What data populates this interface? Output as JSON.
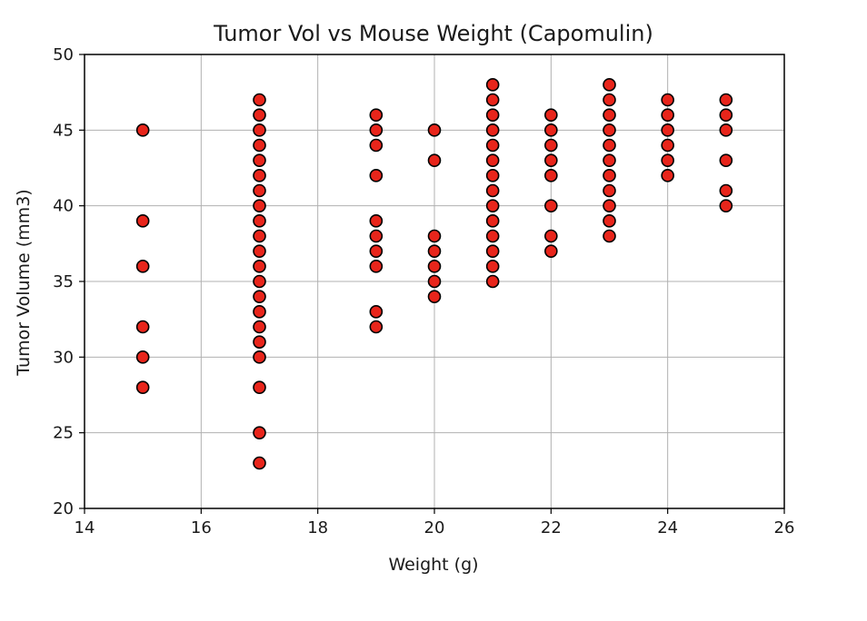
{
  "chart_data": {
    "type": "scatter",
    "title": "Tumor Vol vs Mouse Weight (Capomulin)",
    "xlabel": "Weight (g)",
    "ylabel": "Tumor Volume (mm3)",
    "xlim": [
      14,
      26
    ],
    "ylim": [
      20,
      50
    ],
    "xticks": [
      "14",
      "16",
      "18",
      "20",
      "22",
      "24",
      "26"
    ],
    "yticks": [
      "20",
      "25",
      "30",
      "35",
      "40",
      "45",
      "50"
    ],
    "grid": true,
    "marker_color": "#e8251b",
    "marker_edge_color": "#000000",
    "points": [
      [
        15,
        45
      ],
      [
        15,
        39
      ],
      [
        15,
        36
      ],
      [
        15,
        32
      ],
      [
        15,
        30
      ],
      [
        15,
        28
      ],
      [
        17,
        47
      ],
      [
        17,
        46
      ],
      [
        17,
        45
      ],
      [
        17,
        44
      ],
      [
        17,
        43
      ],
      [
        17,
        42
      ],
      [
        17,
        41
      ],
      [
        17,
        40
      ],
      [
        17,
        39
      ],
      [
        17,
        38
      ],
      [
        17,
        37
      ],
      [
        17,
        36
      ],
      [
        17,
        35
      ],
      [
        17,
        34
      ],
      [
        17,
        33
      ],
      [
        17,
        32
      ],
      [
        17,
        31
      ],
      [
        17,
        30
      ],
      [
        17,
        28
      ],
      [
        17,
        25
      ],
      [
        17,
        23
      ],
      [
        19,
        46
      ],
      [
        19,
        45
      ],
      [
        19,
        44
      ],
      [
        19,
        42
      ],
      [
        19,
        39
      ],
      [
        19,
        38
      ],
      [
        19,
        37
      ],
      [
        19,
        36
      ],
      [
        19,
        33
      ],
      [
        19,
        32
      ],
      [
        20,
        45
      ],
      [
        20,
        43
      ],
      [
        20,
        38
      ],
      [
        20,
        37
      ],
      [
        20,
        36
      ],
      [
        20,
        35
      ],
      [
        20,
        34
      ],
      [
        21,
        48
      ],
      [
        21,
        47
      ],
      [
        21,
        46
      ],
      [
        21,
        45
      ],
      [
        21,
        44
      ],
      [
        21,
        43
      ],
      [
        21,
        42
      ],
      [
        21,
        41
      ],
      [
        21,
        40
      ],
      [
        21,
        39
      ],
      [
        21,
        38
      ],
      [
        21,
        37
      ],
      [
        21,
        36
      ],
      [
        21,
        35
      ],
      [
        22,
        46
      ],
      [
        22,
        45
      ],
      [
        22,
        44
      ],
      [
        22,
        43
      ],
      [
        22,
        42
      ],
      [
        22,
        40
      ],
      [
        22,
        38
      ],
      [
        22,
        37
      ],
      [
        23,
        48
      ],
      [
        23,
        47
      ],
      [
        23,
        46
      ],
      [
        23,
        45
      ],
      [
        23,
        44
      ],
      [
        23,
        43
      ],
      [
        23,
        42
      ],
      [
        23,
        41
      ],
      [
        23,
        40
      ],
      [
        23,
        39
      ],
      [
        23,
        38
      ],
      [
        24,
        47
      ],
      [
        24,
        46
      ],
      [
        24,
        45
      ],
      [
        24,
        44
      ],
      [
        24,
        43
      ],
      [
        24,
        42
      ],
      [
        25,
        47
      ],
      [
        25,
        46
      ],
      [
        25,
        45
      ],
      [
        25,
        43
      ],
      [
        25,
        41
      ],
      [
        25,
        40
      ]
    ]
  }
}
